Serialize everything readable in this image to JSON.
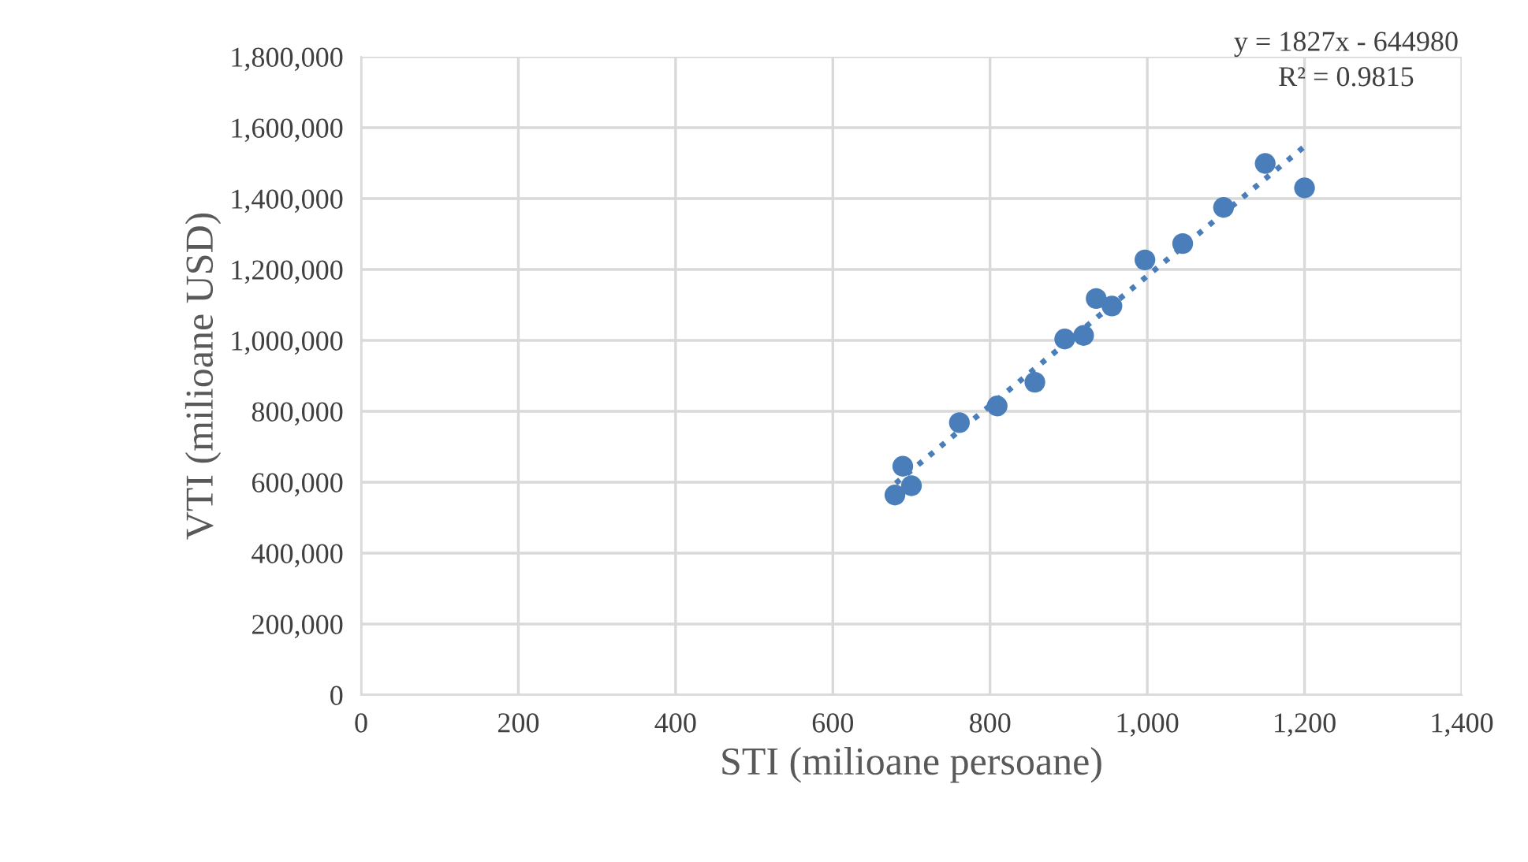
{
  "chart_data": {
    "type": "scatter",
    "xlabel": "STI (milioane persoane)",
    "ylabel": "VTI (milioane USD)",
    "annotations": [
      "y = 1827x - 644980",
      "R² = 0.9815"
    ],
    "series": [
      {
        "color": "#4a7ebb",
        "marker": "circle",
        "x": [
          679,
          700,
          689,
          761,
          809,
          857,
          895,
          919,
          935,
          955,
          997,
          1045,
          1097,
          1150,
          1200
        ],
        "values": [
          564000,
          590000,
          645000,
          768000,
          815000,
          882000,
          1004000,
          1014000,
          1118000,
          1097000,
          1227000,
          1273000,
          1375000,
          1499000,
          1430000
        ]
      },
      {
        "type": "line",
        "color": "#4a7ebb",
        "line_style": "dotted",
        "x": [
          680,
          1200
        ],
        "values": [
          597000,
          1547000
        ]
      }
    ],
    "xlim": [
      0,
      1400
    ],
    "xticks": [
      {
        "value": 0,
        "label": "0"
      },
      {
        "value": 200,
        "label": "200"
      },
      {
        "value": 400,
        "label": "400"
      },
      {
        "value": 600,
        "label": "600"
      },
      {
        "value": 800,
        "label": "800"
      },
      {
        "value": 1000,
        "label": "1,000"
      },
      {
        "value": 1200,
        "label": "1,200"
      },
      {
        "value": 1400,
        "label": "1,400"
      }
    ],
    "ylim": [
      0,
      1800000
    ],
    "yticks": [
      {
        "value": 0,
        "label": "0"
      },
      {
        "value": 200000,
        "label": "200,000"
      },
      {
        "value": 400000,
        "label": "400,000"
      },
      {
        "value": 600000,
        "label": "600,000"
      },
      {
        "value": 800000,
        "label": "800,000"
      },
      {
        "value": 1000000,
        "label": "1,000,000"
      },
      {
        "value": 1200000,
        "label": "1,200,000"
      },
      {
        "value": 1400000,
        "label": "1,400,000"
      },
      {
        "value": 1600000,
        "label": "1,600,000"
      },
      {
        "value": 1800000,
        "label": "1,800,000"
      }
    ],
    "grid": true,
    "legend": false
  }
}
